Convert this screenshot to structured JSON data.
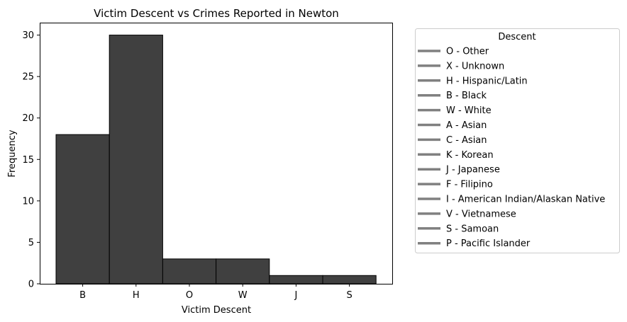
{
  "chart_data": {
    "type": "bar",
    "title": "Victim Descent vs Crimes Reported in Newton",
    "xlabel": "Victim Descent",
    "ylabel": "Frequency",
    "categories": [
      "B",
      "H",
      "O",
      "W",
      "J",
      "S"
    ],
    "values": [
      18,
      30,
      3,
      3,
      1,
      1
    ],
    "ylim": [
      0,
      31.5
    ],
    "yticks": [
      0,
      5,
      10,
      15,
      20,
      25,
      30
    ],
    "bar_color": "#404040",
    "bar_edge_color": "#000000",
    "grid": false,
    "legend": {
      "title": "Descent",
      "placement": "outside-right",
      "line_color": "#808080",
      "entries": [
        "O - Other",
        "X - Unknown",
        "H - Hispanic/Latin",
        "B - Black",
        "W - White",
        "A - Asian",
        "C - Asian",
        "K - Korean",
        "J - Japanese",
        "F - Filipino",
        "I - American Indian/Alaskan Native",
        "V - Vietnamese",
        "S - Samoan",
        "P - Pacific Islander"
      ]
    }
  }
}
